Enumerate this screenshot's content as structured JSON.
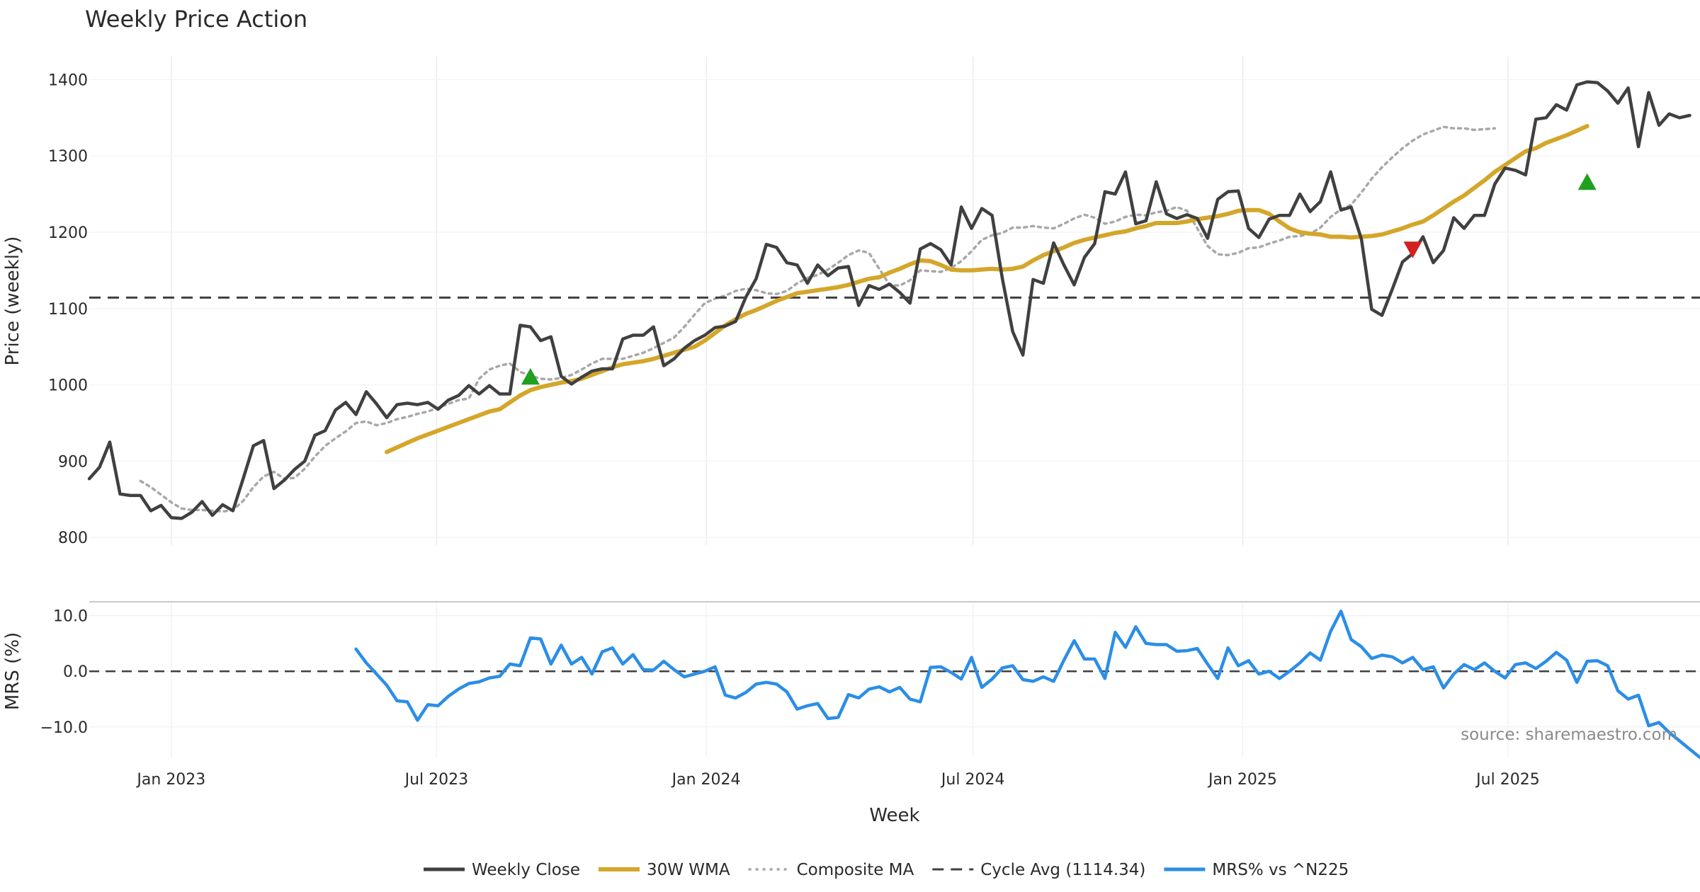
{
  "chart_data": {
    "type": "line",
    "title": "Weekly Price Action",
    "xlabel": "Week",
    "x_ticks": [
      "Jan 2023",
      "Jul 2023",
      "Jan 2024",
      "Jul 2024",
      "Jan 2025",
      "Jul 2025"
    ],
    "x_start": "2022-11-06",
    "x_range": [
      "2022-11-06",
      "2025-11-09"
    ],
    "grid": true,
    "legend_position": "bottom",
    "source": "source: sharemaestro.com",
    "price_panel": {
      "ylabel": "Price (weekly)",
      "ylim": [
        790,
        1430
      ],
      "y_ticks": [
        800,
        900,
        1000,
        1100,
        1200,
        1300,
        1400
      ],
      "series": [
        {
          "name": "Weekly Close",
          "color": "#404040",
          "style": "solid",
          "start_index": 0,
          "values": [
            877,
            892,
            925,
            857,
            855,
            855,
            835,
            842,
            826,
            825,
            833,
            847,
            829,
            843,
            835,
            877,
            920,
            927,
            864,
            875,
            889,
            900,
            934,
            940,
            967,
            977,
            961,
            991,
            975,
            957,
            974,
            976,
            974,
            977,
            968,
            980,
            986,
            999,
            988,
            999,
            988,
            988,
            1078,
            1076,
            1058,
            1063,
            1011,
            1001,
            1010,
            1018,
            1021,
            1021,
            1060,
            1065,
            1065,
            1076,
            1025,
            1034,
            1048,
            1058,
            1065,
            1075,
            1077,
            1083,
            1115,
            1139,
            1184,
            1180,
            1160,
            1157,
            1133,
            1157,
            1143,
            1153,
            1155,
            1104,
            1130,
            1125,
            1132,
            1121,
            1107,
            1178,
            1185,
            1177,
            1157,
            1233,
            1205,
            1231,
            1222,
            1139,
            1070,
            1039,
            1138,
            1133,
            1186,
            1157,
            1131,
            1167,
            1185,
            1253,
            1250,
            1279,
            1211,
            1215,
            1266,
            1224,
            1218,
            1223,
            1218,
            1192,
            1243,
            1253,
            1254,
            1205,
            1193,
            1217,
            1222,
            1222,
            1250,
            1227,
            1240,
            1279,
            1229,
            1233,
            1191,
            1099,
            1091,
            1125,
            1161,
            1172,
            1194,
            1160,
            1176,
            1219,
            1205,
            1222,
            1222,
            1263,
            1284,
            1281,
            1275,
            1348,
            1350,
            1367,
            1360,
            1393,
            1397,
            1396,
            1385,
            1369,
            1389,
            1312,
            1383,
            1340,
            1355,
            1350,
            1353
          ]
        },
        {
          "name": "30W WMA",
          "color": "#d4a62a",
          "style": "solid",
          "start_index": 29,
          "values": [
            912,
            918,
            924,
            930,
            935,
            940,
            945,
            950,
            955,
            960,
            965,
            968,
            977,
            986,
            993,
            997,
            1000,
            1003,
            1005,
            1008,
            1013,
            1018,
            1023,
            1027,
            1029,
            1031,
            1034,
            1038,
            1042,
            1046,
            1050,
            1058,
            1068,
            1078,
            1086,
            1093,
            1098,
            1104,
            1110,
            1115,
            1120,
            1122,
            1124,
            1126,
            1128,
            1131,
            1135,
            1139,
            1141,
            1147,
            1152,
            1158,
            1163,
            1162,
            1157,
            1151,
            1150,
            1150,
            1151,
            1152,
            1151,
            1152,
            1155,
            1163,
            1170,
            1175,
            1180,
            1186,
            1190,
            1193,
            1196,
            1199,
            1201,
            1205,
            1208,
            1212,
            1212,
            1212,
            1214,
            1217,
            1219,
            1221,
            1224,
            1228,
            1229,
            1229,
            1224,
            1214,
            1205,
            1200,
            1198,
            1197,
            1194,
            1194,
            1193,
            1194,
            1195,
            1197,
            1201,
            1205,
            1210,
            1214,
            1222,
            1231,
            1240,
            1248,
            1258,
            1268,
            1279,
            1288,
            1297,
            1306,
            1310,
            1317,
            1322,
            1327,
            1333,
            1339
          ]
        },
        {
          "name": "Composite MA",
          "color": "#a8a8a8",
          "style": "dotted",
          "start_index": 5,
          "values": [
            874,
            866,
            856,
            846,
            838,
            836,
            836,
            835,
            834,
            836,
            848,
            866,
            880,
            886,
            877,
            878,
            890,
            906,
            920,
            930,
            939,
            950,
            952,
            947,
            950,
            955,
            958,
            962,
            965,
            970,
            975,
            980,
            982,
            1008,
            1020,
            1025,
            1028,
            1017,
            1012,
            1008,
            1007,
            1009,
            1013,
            1020,
            1028,
            1034,
            1034,
            1034,
            1038,
            1042,
            1048,
            1055,
            1062,
            1076,
            1092,
            1107,
            1113,
            1117,
            1123,
            1126,
            1124,
            1120,
            1119,
            1123,
            1133,
            1140,
            1144,
            1151,
            1160,
            1170,
            1176,
            1173,
            1152,
            1131,
            1130,
            1137,
            1150,
            1149,
            1148,
            1153,
            1162,
            1175,
            1190,
            1196,
            1199,
            1206,
            1206,
            1208,
            1206,
            1205,
            1211,
            1218,
            1223,
            1219,
            1211,
            1214,
            1220,
            1223,
            1222,
            1226,
            1228,
            1233,
            1228,
            1205,
            1182,
            1171,
            1170,
            1173,
            1179,
            1180,
            1185,
            1189,
            1194,
            1195,
            1198,
            1206,
            1220,
            1230,
            1236,
            1252,
            1270,
            1285,
            1298,
            1310,
            1320,
            1328,
            1333,
            1338,
            1336,
            1336,
            1334,
            1335,
            1336
          ]
        },
        {
          "name": "Cycle Avg (1114.34)",
          "color": "#404040",
          "style": "dashed",
          "constant": 1114.34
        }
      ],
      "markers": [
        {
          "type": "buy",
          "color": "#1fa01f",
          "index": 43,
          "value": 1010
        },
        {
          "type": "sell",
          "color": "#d42020",
          "index": 129,
          "value": 1178
        },
        {
          "type": "buy",
          "color": "#1fa01f",
          "index": 146,
          "value": 1265
        }
      ]
    },
    "mrs_panel": {
      "ylabel": "MRS (%)",
      "ylim": [
        -15.5,
        12.5
      ],
      "y_ticks": [
        10.0,
        0.0,
        -10.0
      ],
      "y_tick_labels": [
        "10.0",
        "0.0",
        "−10.0"
      ],
      "zero_line": true,
      "series": [
        {
          "name": "MRS% vs ^N225",
          "color": "#2b8ee6",
          "style": "solid",
          "start_index": 26,
          "values": [
            4.0,
            1.5,
            -0.5,
            -2.5,
            -5.3,
            -5.5,
            -8.8,
            -6.0,
            -6.2,
            -4.5,
            -3.2,
            -2.2,
            -1.9,
            -1.2,
            -0.9,
            1.3,
            1.0,
            6.0,
            5.8,
            1.3,
            4.7,
            1.3,
            2.5,
            -0.5,
            3.5,
            4.2,
            1.3,
            3.0,
            0.3,
            0.2,
            1.8,
            0.3,
            -1.0,
            -0.5,
            0.0,
            0.8,
            -4.3,
            -4.8,
            -3.8,
            -2.3,
            -2.0,
            -2.3,
            -3.7,
            -6.8,
            -6.2,
            -5.8,
            -8.5,
            -8.3,
            -4.2,
            -4.8,
            -3.2,
            -2.8,
            -3.7,
            -2.9,
            -5.0,
            -5.5,
            0.7,
            0.8,
            -0.2,
            -1.4,
            2.5,
            -2.9,
            -1.4,
            0.6,
            1.0,
            -1.5,
            -1.8,
            -1.0,
            -1.8,
            2.0,
            5.5,
            2.2,
            2.2,
            -1.3,
            7.0,
            4.3,
            8.0,
            5.0,
            4.8,
            4.8,
            3.6,
            3.7,
            4.1,
            1.3,
            -1.3,
            4.2,
            1.0,
            1.9,
            -0.5,
            0.0,
            -1.3,
            0.0,
            1.5,
            3.3,
            2.0,
            7.2,
            10.8,
            5.7,
            4.4,
            2.3,
            2.9,
            2.6,
            1.5,
            2.5,
            0.3,
            0.8,
            -3.0,
            -0.5,
            1.2,
            0.3,
            1.5,
            0.0,
            -1.2,
            1.2,
            1.5,
            0.5,
            1.8,
            3.4,
            2.0,
            -2.0,
            1.8,
            1.9,
            1.0,
            -3.5,
            -5.0,
            -4.3,
            -9.8,
            -9.2,
            -11.0,
            -12.5,
            -14.0,
            -15.5
          ]
        }
      ]
    },
    "legend": [
      "Weekly Close",
      "30W WMA",
      "Composite MA",
      "Cycle Avg (1114.34)",
      "MRS% vs ^N225"
    ]
  }
}
